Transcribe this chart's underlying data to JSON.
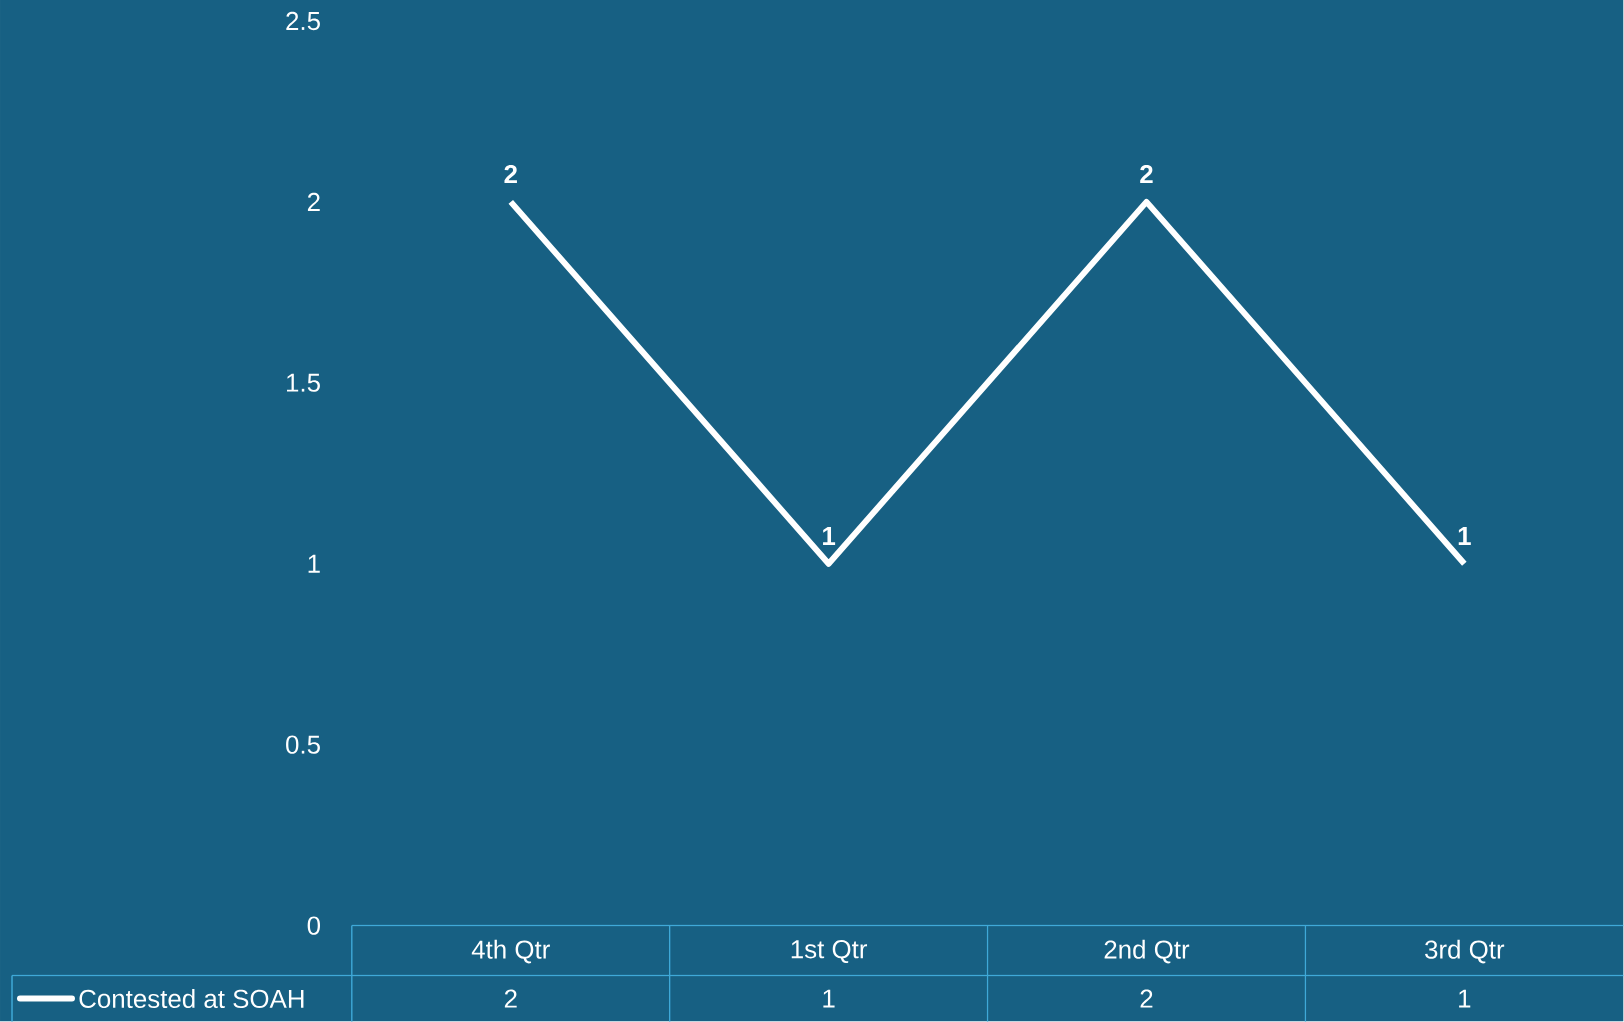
{
  "chart_data": {
    "type": "line",
    "categories": [
      "4th Qtr",
      "1st Qtr",
      "2nd Qtr",
      "3rd Qtr"
    ],
    "series": [
      {
        "name": "Contested at SOAH",
        "color": "#ffffff",
        "values": [
          2,
          1,
          2,
          1
        ],
        "value_labels": [
          "2",
          "1",
          "2",
          "1"
        ]
      }
    ],
    "ylim": [
      0,
      2.5
    ],
    "yticks": [
      0,
      0.5,
      1,
      1.5,
      2,
      2.5
    ],
    "data_labels": true,
    "legend": "bottom left",
    "marker": "none",
    "line_style": "solid",
    "grid": false
  }
}
